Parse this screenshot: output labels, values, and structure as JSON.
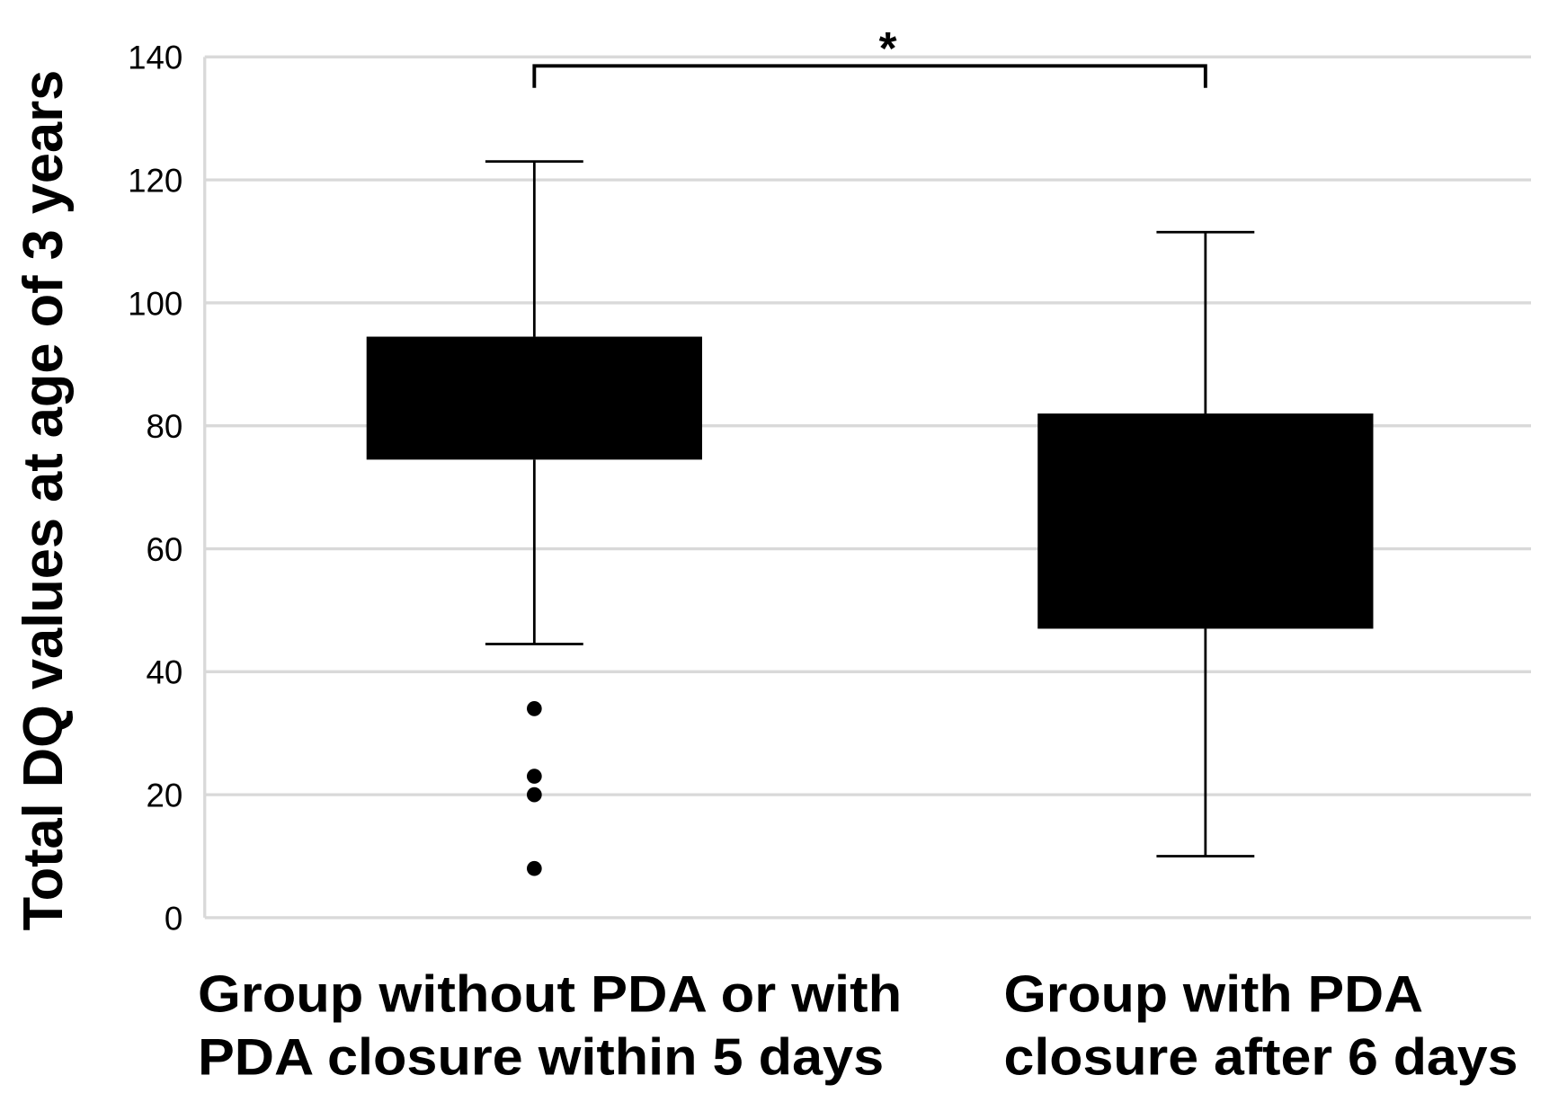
{
  "chart_data": {
    "type": "box",
    "title": "",
    "xlabel": "",
    "ylabel": "Total DQ values at age of 3 years",
    "categories": [
      "Group without PDA or with\nPDA closure within 5 days",
      "Group with PDA\nclosure after 6 days"
    ],
    "ylim": [
      0,
      140
    ],
    "yticks": [
      0,
      20,
      40,
      60,
      80,
      100,
      120,
      140
    ],
    "grid": true,
    "boxes": [
      {
        "whisker_low": 44.5,
        "q1": 74.5,
        "q3": 94.5,
        "whisker_high": 123,
        "outliers": [
          34,
          23,
          20,
          8
        ]
      },
      {
        "whisker_low": 10,
        "q1": 47,
        "q3": 82,
        "whisker_high": 111.5,
        "outliers": []
      }
    ],
    "annotations": [
      {
        "text": "*",
        "between": [
          0,
          1
        ]
      }
    ],
    "colors": {
      "box": "#000000",
      "whisker": "#000000",
      "grid": "#d9d9d9",
      "axis": "#d9d9d9"
    }
  }
}
